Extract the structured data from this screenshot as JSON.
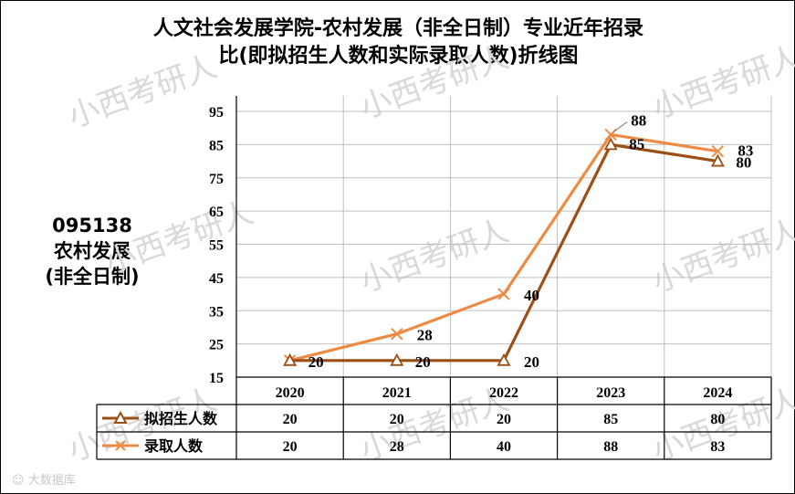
{
  "title_line1": "人文社会发展学院-农村发展（非全日制）专业近年招录",
  "title_line2": "比(即拟招生人数和实际录取人数)折线图",
  "side_label": {
    "line1": "095138",
    "line2": "农村发展",
    "line3": "(非全日制)"
  },
  "watermark": "小西考研人",
  "brand": "大数据库",
  "chart_data": {
    "type": "line",
    "title": "人文社会发展学院-农村发展（非全日制）专业近年招录比(即拟招生人数和实际录取人数)折线图",
    "categories": [
      "2020",
      "2021",
      "2022",
      "2023",
      "2024"
    ],
    "yticks": [
      "95",
      "85",
      "75",
      "65",
      "55",
      "45",
      "35",
      "25",
      "15"
    ],
    "ylim": [
      15,
      95
    ],
    "grid": true,
    "legend": "data-table-bottom",
    "series": [
      {
        "name": "拟招生人数",
        "values": [
          20,
          20,
          20,
          85,
          80
        ],
        "labels": [
          "20",
          "20",
          "20",
          "85",
          "80"
        ],
        "color": "#9c4f14",
        "marker": "triangle"
      },
      {
        "name": "录取人数",
        "values": [
          20,
          28,
          40,
          88,
          83
        ],
        "labels": [
          "20",
          "28",
          "40",
          "88",
          "83"
        ],
        "color": "#ed8b45",
        "marker": "x"
      }
    ]
  }
}
